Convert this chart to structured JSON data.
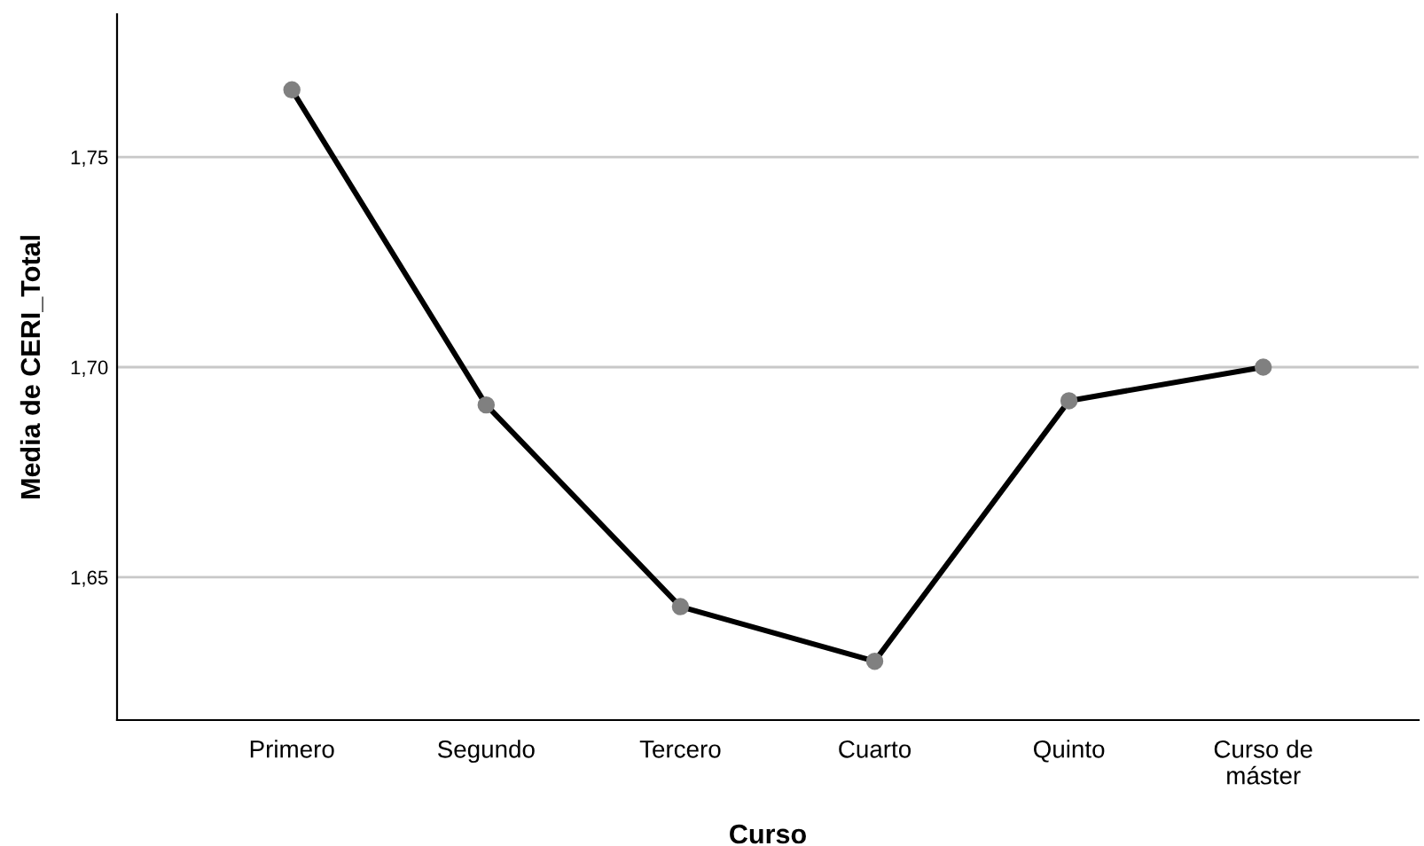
{
  "chart_data": {
    "type": "line",
    "xlabel": "Curso",
    "ylabel": "Media de CERI_Total",
    "categories": [
      "Primero",
      "Segundo",
      "Tercero",
      "Cuarto",
      "Quinto",
      "Curso de\nmáster"
    ],
    "series": [
      {
        "color": "#000000",
        "values": [
          1.766,
          1.691,
          1.643,
          1.63,
          1.692,
          1.7
        ]
      }
    ],
    "ylim": [
      1.616,
      1.784
    ],
    "yticks": [
      {
        "value": 1.65,
        "label": "1,65"
      },
      {
        "value": 1.7,
        "label": "1,70"
      },
      {
        "value": 1.75,
        "label": "1,75"
      }
    ],
    "grid": "y",
    "marker": "circle",
    "line_style": "solid",
    "legend": false
  }
}
